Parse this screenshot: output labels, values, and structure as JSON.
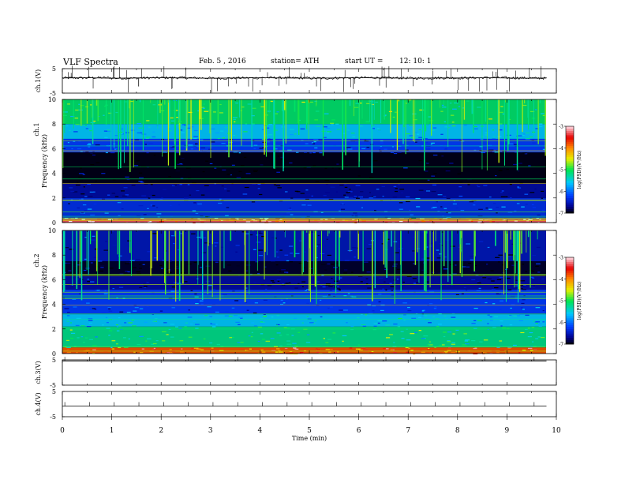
{
  "header": {
    "title": "VLF  Spectra",
    "date": "Feb. 5  , 2016",
    "station": "station= ATH",
    "start_label": "start  UT  =",
    "start_time": "12: 10: 1"
  },
  "chart_data": [
    {
      "type": "line",
      "panel": "ch1-waveform",
      "ylabel": "ch.1(V)",
      "ylim": [
        -5,
        5
      ],
      "yticks": [
        "5",
        "-5"
      ],
      "x": [
        0,
        0.5,
        1,
        1.5,
        2,
        2.5,
        3,
        3.5,
        4,
        4.5,
        5,
        5.5,
        6,
        6.5,
        7,
        7.5,
        8,
        8.5,
        9,
        9.5,
        9.8
      ],
      "values": [
        1.2,
        1.3,
        1.1,
        1.2,
        1.3,
        1.2,
        1.1,
        1.2,
        1.3,
        1.2,
        1.1,
        1.2,
        1.3,
        1.2,
        1.1,
        1.2,
        1.2,
        1.3,
        1.2,
        1.1,
        1.2
      ],
      "color": "#000000"
    },
    {
      "type": "heatmap",
      "panel": "ch1-spectrogram",
      "ylabel_top": "ch.1",
      "ylabel": "Frequency  (kHz)",
      "ylim": [
        0,
        10
      ],
      "yticks": [
        "0",
        "2",
        "4",
        "6",
        "8",
        "10"
      ],
      "xlim": [
        0,
        10
      ],
      "colorbar": {
        "label": "log(PSD)(V²/Hz)",
        "range": [
          -7,
          -3
        ],
        "ticks": [
          "-3",
          "-4",
          "-5",
          "-6",
          "-7"
        ]
      },
      "bands": [
        {
          "from": 0,
          "to": 0.4,
          "level": -3.3
        },
        {
          "from": 0.4,
          "to": 2,
          "level": -6.3
        },
        {
          "from": 2,
          "to": 3.2,
          "level": -6.6
        },
        {
          "from": 3.2,
          "to": 5.7,
          "level": -6.95
        },
        {
          "from": 5.7,
          "to": 6.8,
          "level": -6.2
        },
        {
          "from": 6.8,
          "to": 8,
          "level": -5.6
        },
        {
          "from": 8,
          "to": 10,
          "level": -5.1
        }
      ]
    },
    {
      "type": "heatmap",
      "panel": "ch2-spectrogram",
      "ylabel_top": "ch.2",
      "ylabel": "Frequency  (kHz)",
      "ylim": [
        0,
        10
      ],
      "yticks": [
        "0",
        "2",
        "4",
        "6",
        "8",
        "10"
      ],
      "xlim": [
        0,
        10
      ],
      "colorbar": {
        "label": "log(PSD)(V²/Hz)",
        "range": [
          -7,
          -3
        ],
        "ticks": [
          "-3",
          "-4",
          "-5",
          "-6",
          "-7"
        ]
      },
      "bands": [
        {
          "from": 0,
          "to": 0.5,
          "level": -3.8
        },
        {
          "from": 0.5,
          "to": 2.2,
          "level": -5.2
        },
        {
          "from": 2.2,
          "to": 3.2,
          "level": -5.6
        },
        {
          "from": 3.2,
          "to": 5.2,
          "level": -6.2
        },
        {
          "from": 5.2,
          "to": 6.3,
          "level": -6.6
        },
        {
          "from": 6.3,
          "to": 7.5,
          "level": -6.9
        },
        {
          "from": 7.5,
          "to": 10,
          "level": -6.5
        }
      ]
    },
    {
      "type": "line",
      "panel": "ch3-waveform",
      "ylabel": "ch.3(V)",
      "ylim": [
        -5,
        5
      ],
      "yticks": [
        "5",
        "-5"
      ],
      "x": [
        0,
        9.8
      ],
      "values": [
        4.6,
        4.6
      ],
      "color": "#000000"
    },
    {
      "type": "line",
      "panel": "ch4-waveform",
      "ylabel": "ch.4(V)",
      "ylim": [
        -5,
        5
      ],
      "yticks": [
        "5",
        "-5"
      ],
      "x": [
        0,
        9.8
      ],
      "values": [
        -0.8,
        -0.8
      ],
      "color": "#000000"
    }
  ],
  "xaxis": {
    "label": "Time  (min)",
    "ticks": [
      "0",
      "1",
      "2",
      "3",
      "4",
      "5",
      "6",
      "7",
      "8",
      "9",
      "10"
    ],
    "xlim": [
      0,
      10
    ]
  }
}
